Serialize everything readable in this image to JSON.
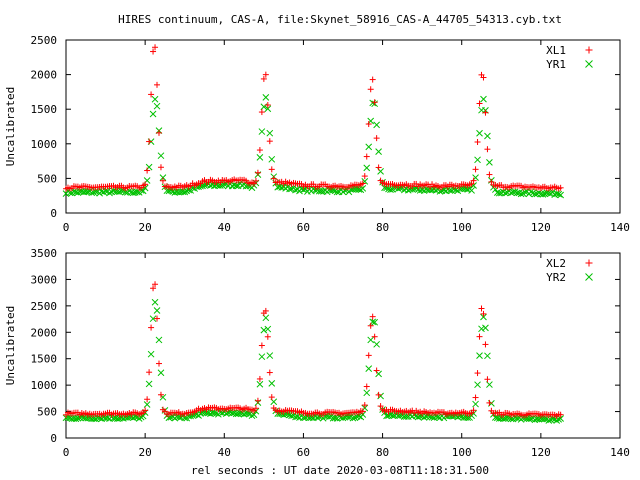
{
  "title": "HIRES continuum, CAS-A, file:Skynet_58916_CAS-A_44705_54313.cyb.txt",
  "xlabel": "rel seconds : UT date 2020-03-08T11:18:31.500",
  "colors": {
    "red": "#ff0000",
    "green": "#00c000"
  },
  "chart_data": [
    {
      "type": "scatter",
      "ylabel": "Uncalibrated",
      "xlim": [
        0,
        140
      ],
      "ylim": [
        0,
        2500
      ],
      "xticks": [
        0,
        20,
        40,
        60,
        80,
        100,
        120,
        140
      ],
      "yticks": [
        0,
        500,
        1000,
        1500,
        2000,
        2500
      ],
      "legend_position": "top-right",
      "x_range": [
        0,
        125
      ],
      "sample_step": 0.5,
      "series": [
        {
          "name": "XL1",
          "marker": "plus",
          "color": "#ff0000",
          "baseline": [
            [
              0,
              370
            ],
            [
              30,
              380
            ],
            [
              35,
              460
            ],
            [
              45,
              470
            ],
            [
              48,
              420
            ],
            [
              55,
              440
            ],
            [
              60,
              400
            ],
            [
              70,
              390
            ],
            [
              82,
              420
            ],
            [
              95,
              390
            ],
            [
              100,
              400
            ],
            [
              110,
              390
            ],
            [
              125,
              360
            ]
          ],
          "peaks": [
            {
              "center": 22.3,
              "height": 2450,
              "width": 0.85
            },
            {
              "center": 50.3,
              "height": 2030,
              "width": 0.85
            },
            {
              "center": 77.4,
              "height": 1930,
              "width": 0.85
            },
            {
              "center": 105.2,
              "height": 2050,
              "width": 0.85
            }
          ],
          "noise": 40
        },
        {
          "name": "YR1",
          "marker": "x",
          "color": "#00c000",
          "baseline": [
            [
              0,
              300
            ],
            [
              30,
              310
            ],
            [
              35,
              400
            ],
            [
              45,
              410
            ],
            [
              48,
              360
            ],
            [
              55,
              370
            ],
            [
              60,
              330
            ],
            [
              70,
              320
            ],
            [
              82,
              350
            ],
            [
              95,
              330
            ],
            [
              100,
              340
            ],
            [
              110,
              300
            ],
            [
              125,
              280
            ]
          ],
          "peaks": [
            {
              "center": 22.6,
              "height": 1650,
              "width": 1.0
            },
            {
              "center": 50.5,
              "height": 1680,
              "width": 1.0
            },
            {
              "center": 77.7,
              "height": 1620,
              "width": 1.0
            },
            {
              "center": 105.5,
              "height": 1660,
              "width": 1.0
            }
          ],
          "noise": 40
        }
      ]
    },
    {
      "type": "scatter",
      "ylabel": "Uncalibrated",
      "xlim": [
        0,
        140
      ],
      "ylim": [
        0,
        3500
      ],
      "xticks": [
        0,
        20,
        40,
        60,
        80,
        100,
        120,
        140
      ],
      "yticks": [
        0,
        500,
        1000,
        1500,
        2000,
        2500,
        3000,
        3500
      ],
      "legend_position": "top-right",
      "x_range": [
        0,
        125
      ],
      "sample_step": 0.5,
      "series": [
        {
          "name": "XL2",
          "marker": "plus",
          "color": "#ff0000",
          "baseline": [
            [
              0,
              460
            ],
            [
              30,
              470
            ],
            [
              35,
              560
            ],
            [
              45,
              560
            ],
            [
              48,
              500
            ],
            [
              55,
              520
            ],
            [
              60,
              480
            ],
            [
              70,
              470
            ],
            [
              82,
              520
            ],
            [
              95,
              470
            ],
            [
              100,
              480
            ],
            [
              110,
              460
            ],
            [
              125,
              430
            ]
          ],
          "peaks": [
            {
              "center": 22.3,
              "height": 3000,
              "width": 0.85
            },
            {
              "center": 50.3,
              "height": 2480,
              "width": 0.85
            },
            {
              "center": 77.4,
              "height": 2330,
              "width": 0.85
            },
            {
              "center": 105.2,
              "height": 2490,
              "width": 0.85
            }
          ],
          "noise": 45
        },
        {
          "name": "YR2",
          "marker": "x",
          "color": "#00c000",
          "baseline": [
            [
              0,
              380
            ],
            [
              30,
              390
            ],
            [
              35,
              470
            ],
            [
              45,
              470
            ],
            [
              48,
              420
            ],
            [
              55,
              440
            ],
            [
              60,
              400
            ],
            [
              70,
              390
            ],
            [
              82,
              430
            ],
            [
              95,
              400
            ],
            [
              100,
              410
            ],
            [
              110,
              370
            ],
            [
              125,
              350
            ]
          ],
          "peaks": [
            {
              "center": 22.6,
              "height": 2600,
              "width": 1.0
            },
            {
              "center": 50.5,
              "height": 2280,
              "width": 1.0
            },
            {
              "center": 77.7,
              "height": 2250,
              "width": 1.0
            },
            {
              "center": 105.5,
              "height": 2300,
              "width": 1.0
            }
          ],
          "noise": 45
        }
      ]
    }
  ]
}
